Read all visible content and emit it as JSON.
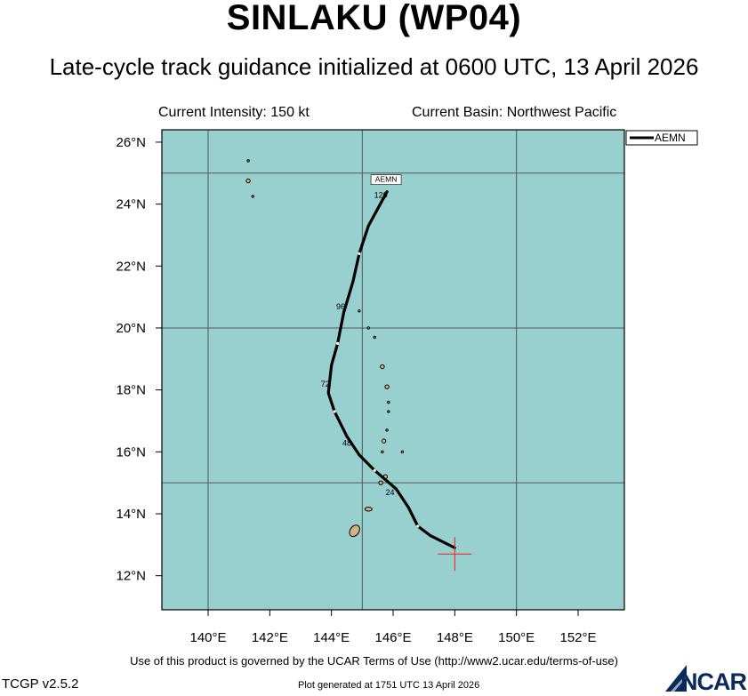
{
  "header": {
    "title": "SINLAKU (WP04)",
    "subtitle": "Late-cycle track guidance initialized at 0600 UTC, 13 April 2026",
    "current_intensity": "Current Intensity: 150 kt",
    "current_basin": "Current Basin: Northwest Pacific"
  },
  "legend": {
    "entries": [
      "AEMN"
    ]
  },
  "map": {
    "ocean_color": "#98cfcf",
    "land_color": "#d4b27e",
    "track_color": "#000000",
    "current_position_color": "#e8312c",
    "lat_ticks": [
      "26°N",
      "24°N",
      "22°N",
      "20°N",
      "18°N",
      "16°N",
      "14°N",
      "12°N"
    ],
    "lon_ticks": [
      "140°E",
      "142°E",
      "144°E",
      "146°E",
      "148°E",
      "150°E",
      "152°E"
    ],
    "lat_range": [
      10.9,
      26.4
    ],
    "lon_range": [
      138.5,
      153.5
    ],
    "gridlines_lat": [
      25,
      20,
      15
    ],
    "gridlines_lon": [
      140,
      145,
      150
    ],
    "current_position": {
      "lon": 148.0,
      "lat": 12.7
    },
    "track_label": "AEMN",
    "track": [
      {
        "lon": 148.0,
        "lat": 12.9
      },
      {
        "lon": 147.2,
        "lat": 13.3
      },
      {
        "lon": 146.8,
        "lat": 13.6
      },
      {
        "lon": 146.5,
        "lat": 14.2
      },
      {
        "lon": 146.1,
        "lat": 14.8
      },
      {
        "lon": 145.4,
        "lat": 15.4
      },
      {
        "lon": 144.9,
        "lat": 15.9
      },
      {
        "lon": 144.5,
        "lat": 16.5
      },
      {
        "lon": 144.1,
        "lat": 17.3
      },
      {
        "lon": 143.9,
        "lat": 17.9
      },
      {
        "lon": 144.0,
        "lat": 18.8
      },
      {
        "lon": 144.2,
        "lat": 19.5
      },
      {
        "lon": 144.4,
        "lat": 20.5
      },
      {
        "lon": 144.7,
        "lat": 21.5
      },
      {
        "lon": 144.9,
        "lat": 22.4
      },
      {
        "lon": 145.2,
        "lat": 23.3
      },
      {
        "lon": 145.8,
        "lat": 24.4
      }
    ],
    "forecast_hours": [
      {
        "label": "24",
        "lon": 145.9,
        "lat": 14.6
      },
      {
        "label": "48",
        "lon": 144.5,
        "lat": 16.2
      },
      {
        "label": "72",
        "lon": 143.8,
        "lat": 18.1
      },
      {
        "label": "96",
        "lon": 144.3,
        "lat": 20.6
      },
      {
        "label": "120",
        "lon": 145.6,
        "lat": 24.2
      }
    ],
    "islands": [
      {
        "name": "guam",
        "lon": 144.75,
        "lat": 13.45,
        "size": "large"
      },
      {
        "name": "rota",
        "lon": 145.2,
        "lat": 14.15,
        "size": "medium"
      },
      {
        "name": "tinian",
        "lon": 145.6,
        "lat": 15.0,
        "size": "small"
      },
      {
        "name": "saipan",
        "lon": 145.75,
        "lat": 15.2,
        "size": "small"
      },
      {
        "name": "farallon-de-medinilla",
        "lon": 145.65,
        "lat": 16.0,
        "size": "tiny"
      },
      {
        "name": "anatahan",
        "lon": 145.7,
        "lat": 16.35,
        "size": "small"
      },
      {
        "name": "sarigan",
        "lon": 145.8,
        "lat": 16.7,
        "size": "tiny"
      },
      {
        "name": "guguan",
        "lon": 145.85,
        "lat": 17.3,
        "size": "tiny"
      },
      {
        "name": "alamagan",
        "lon": 145.85,
        "lat": 17.6,
        "size": "tiny"
      },
      {
        "name": "pagan",
        "lon": 145.8,
        "lat": 18.1,
        "size": "small"
      },
      {
        "name": "agrihan",
        "lon": 145.65,
        "lat": 18.75,
        "size": "small"
      },
      {
        "name": "asuncion",
        "lon": 145.4,
        "lat": 19.7,
        "size": "tiny"
      },
      {
        "name": "maug",
        "lon": 145.2,
        "lat": 20.0,
        "size": "tiny"
      },
      {
        "name": "uracas",
        "lon": 144.9,
        "lat": 20.55,
        "size": "tiny"
      },
      {
        "name": "north-iwo-jima",
        "lon": 141.3,
        "lat": 25.4,
        "size": "tiny"
      },
      {
        "name": "iwo-jima",
        "lon": 141.3,
        "lat": 24.75,
        "size": "small"
      },
      {
        "name": "south-iwo-jima",
        "lon": 141.45,
        "lat": 24.25,
        "size": "tiny"
      },
      {
        "name": "farallon-de-pajaros",
        "lon": 146.3,
        "lat": 16.0,
        "size": "tiny"
      }
    ]
  },
  "footer": {
    "terms": "Use of this product is governed by the UCAR Terms of Use (http://www2.ucar.edu/terms-of-use)",
    "version": "TCGP v2.5.2",
    "generated": "Plot generated at 1751 UTC   13 April 2026",
    "logo_text": "NCAR"
  }
}
